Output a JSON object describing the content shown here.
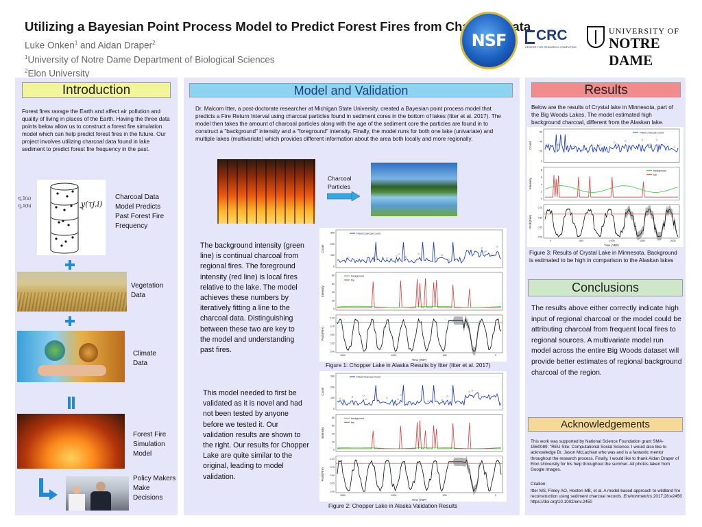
{
  "header": {
    "title": "Utilizing a Bayesian Point Process Model to Predict Forest Fires from Charcoal Data",
    "author1": "Luke Onken",
    "author1_sup": "1",
    "author_and": " and Aidan Draper",
    "author2_sup": "2",
    "aff1_sup": "1",
    "aff1": "University of Notre Dame Department of Biological Sciences",
    "aff2_sup": "2",
    "aff2": "Elon University",
    "logos": {
      "nsf": "NSF",
      "crc": "CRC",
      "crc_sub": "CENTER FOR RESEARCH COMPUTING",
      "nd_line1": "UNIVERSITY OF",
      "nd_line2": "NOTRE DAME"
    }
  },
  "intro": {
    "heading": "Introduction",
    "body": "Forest fires ravage the Earth and affect air pollution and quality of living in places of the Earth. Having the three data points below allow us to construct a forest fire simulation model which can help predict forest fires in the future. Our project involves utilizing charcoal data found in lake sediment to predict forest fire frequency in the past.",
    "items": [
      {
        "label": "Charcoal Data Model Predicts Past Forest Fire Frequency"
      },
      {
        "label": "Vegetation Data"
      },
      {
        "label": "Climate Data"
      },
      {
        "label": "Forest Fire Simulation Model"
      },
      {
        "label": "Policy Makers Make Decisions"
      }
    ],
    "cylinder_formula": "y(τj,i)",
    "cylinder_t1": "τj,1(a)",
    "cylinder_t2": "τj,1(b)"
  },
  "model": {
    "heading": "Model and Validation",
    "body": "Dr. Malcom Itter, a post-doctorate researcher at Michigan State University, created a Bayesian point process model that predicts a Fire Return Interval using charcoal particles found in sediment cores in the bottom of lakes (Itter et al. 2017). The model then takes the amount of charcoal particles along with the age of the sediment core the particles are found in to construct a \"background\" intensity and a \"foreground\" intensity. Finally, the model runs for both one lake (univariate) and multiple lakes (multivariate) which provides different information about the area both locally and more regionally.",
    "arrow_label": "Charcoal Particles",
    "para2": "The background intensity (green line) is continual charcoal from regional fires. The foreground intensity (red line) is local fires relative to the lake. The model achieves these numbers by iteratively fitting a line to the charcoal data. Distinguishing between these two are key to the model and understanding past fires.",
    "para3": "This model needed to first be validated as it is novel and had not been tested by anyone before we tested it. Our validation results are shown to the right. Our results for Chopper Lake are quite similar to the original, leading to model validation.",
    "fig1_caption": "Figure 1: Chopper Lake in Alaska Results by Itter (Itter et al. 2017)",
    "fig2_caption": "Figure 2: Chopper Lake in Alaska Validation Results"
  },
  "results": {
    "heading": "Results",
    "body": "Below are the results of Crystal lake in Minnesota, part of the Big Woods Lakes. The model estimated high background charcoal, different from the Alaskan lake.",
    "fig3_caption": "Figure 3: Results of Crystal Lake in Minnesota. Background is estimated to be high in comparison to the Alaskan lakes"
  },
  "conclusions": {
    "heading": "Conclusions",
    "body": "The results above either correctly indicate high input of regional charcoal or the model could be attributing charcoal from frequent local fires to regional sources. A multivariate model run model across the entire Big Woods dataset will provide better estimates of regional background charcoal of the region."
  },
  "acknowledgements": {
    "heading": "Acknowledgements",
    "body": "This work was supported by National Science Foundation grant SMA-1560089: \"REU Site: Computational Social Science. I would also like to acknowledge Dr. Jason McLachlan who was and is a fantastic mentor throughout the research process. Finally, I would like to thank Aidan Draper of Elon University for his help throughout the summer. All photos taken from Google Images.",
    "citation_label": "Citation:",
    "citation": "Itter MS, Finley AO, Hooten MB, et al. A model-based approach to wildland fire reconstruction using sediment charcoal records.",
    "citation_journal": "Environmetrics",
    "citation_tail": ".2017;28:e2450 https://doi.org/10.1002/env.2450"
  },
  "chart_labels": {
    "alaska": {
      "count_ylabel": "Count",
      "count_legend": "Fitted Charcoal Count",
      "count_yticks": [
        "0",
        "100",
        "200",
        "300"
      ],
      "int_ylabel": "Intensity",
      "int_legend_bg": "background",
      "int_legend_fire": "fire",
      "int_yticks": [
        "0",
        "20",
        "40",
        "60",
        "80"
      ],
      "prob_ylabel": "Prob(Fire)",
      "prob_yticks": [
        "0.00",
        "0.25",
        "0.50",
        "0.75",
        "1.00"
      ],
      "xticks": [
        "1500",
        "1000",
        "500",
        "0"
      ],
      "xlabel": "Time (YBP)"
    },
    "crystal": {
      "count_ylabel": "Count",
      "count_legend": "Fitted Charcoal Count",
      "count_yticks": [
        "0",
        "20",
        "40",
        "60"
      ],
      "int_ylabel": "Intensity",
      "int_legend_bg": "background",
      "int_legend_fire": "fire",
      "int_yticks": [
        "0",
        "2",
        "4",
        "6",
        "8"
      ],
      "prob_ylabel": "Prob(Fire)",
      "prob_yticks": [
        "0.00",
        "0.25",
        "0.50",
        "0.75"
      ],
      "xticks": [
        "0",
        "-500",
        "-1000",
        "-1500",
        "-2000"
      ],
      "xlabel": "Time (YBP)"
    }
  },
  "colors": {
    "count_line": "#1f3fc4",
    "fire_line": "#e23b3b",
    "background_line": "#3cc23c",
    "prob_line": "#111111",
    "prob_band": "#9a9a9a",
    "prob_ref": "#e23b3b"
  }
}
